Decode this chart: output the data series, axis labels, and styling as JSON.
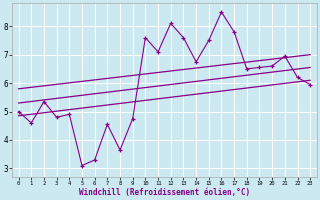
{
  "xlabel": "Windchill (Refroidissement éolien,°C)",
  "bg_color": "#cce8f0",
  "line_color": "#880088",
  "grid_color": "#ffffff",
  "x_data": [
    0,
    1,
    2,
    3,
    4,
    5,
    6,
    7,
    8,
    9,
    10,
    11,
    12,
    13,
    14,
    15,
    16,
    17,
    18,
    19,
    20,
    21,
    22,
    23
  ],
  "y_data": [
    5.0,
    4.6,
    5.35,
    4.8,
    4.9,
    3.1,
    3.3,
    4.55,
    3.65,
    4.75,
    7.6,
    7.1,
    8.1,
    7.6,
    6.75,
    7.5,
    8.5,
    7.8,
    6.5,
    6.55,
    6.6,
    6.95,
    6.2,
    5.95
  ],
  "reg_upper_start": 5.8,
  "reg_upper_end": 7.0,
  "reg_mid_start": 5.3,
  "reg_mid_end": 6.55,
  "reg_lower_start": 4.85,
  "reg_lower_end": 6.1,
  "ylim": [
    2.7,
    8.8
  ],
  "xlim": [
    -0.5,
    23.5
  ],
  "yticks": [
    3,
    4,
    5,
    6,
    7,
    8
  ],
  "xticks": [
    0,
    1,
    2,
    3,
    4,
    5,
    6,
    7,
    8,
    9,
    10,
    11,
    12,
    13,
    14,
    15,
    16,
    17,
    18,
    19,
    20,
    21,
    22,
    23
  ]
}
